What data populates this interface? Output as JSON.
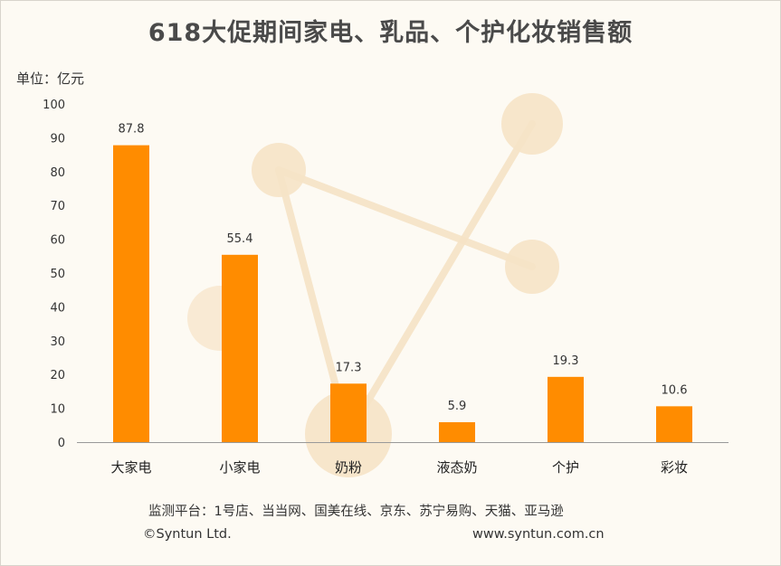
{
  "chart_data": {
    "type": "bar",
    "title": "618大促期间家电、乳品、个护化妆销售额",
    "ylabel": "单位：亿元",
    "categories": [
      "大家电",
      "小家电",
      "奶粉",
      "液态奶",
      "个护",
      "彩妆"
    ],
    "values": [
      87.8,
      55.4,
      17.3,
      5.9,
      19.3,
      10.6
    ],
    "value_labels": [
      "87.8",
      "55.4",
      "17.3",
      "5.9",
      "19.3",
      "10.6"
    ],
    "yticks": [
      "0",
      "10",
      "20",
      "30",
      "40",
      "50",
      "60",
      "70",
      "80",
      "90",
      "100"
    ],
    "ylim": [
      0,
      100
    ],
    "grid": false,
    "bar_color": "#ff8c00"
  },
  "footer": {
    "platforms": "监测平台：1号店、当当网、国美在线、京东、苏宁易购、天猫、亚马逊",
    "copyright": "©Syntun Ltd.",
    "website": "www.syntun.com.cn"
  },
  "colors": {
    "watermark": "#f6e3c6",
    "axis": "#999999"
  }
}
